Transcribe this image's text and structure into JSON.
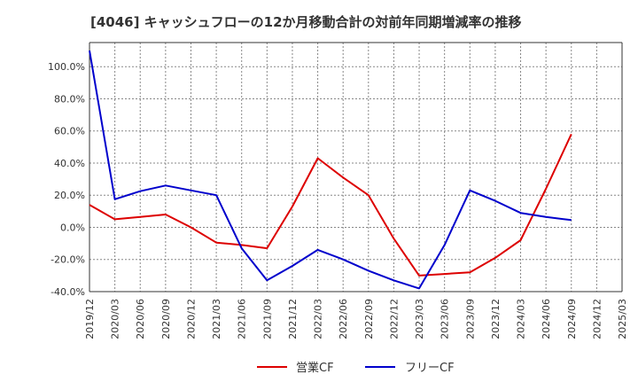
{
  "chart_data": {
    "type": "line",
    "title": "[4046]  キャッシュフローの12か月移動合計の対前年同期増減率の推移",
    "xlabel": "",
    "ylabel": "",
    "ylim": [
      -40,
      115
    ],
    "y_ticks": [
      -40,
      -20,
      0,
      20,
      40,
      60,
      80,
      100
    ],
    "y_tick_labels": [
      "-40.0%",
      "-20.0%",
      "0.0%",
      "20.0%",
      "40.0%",
      "60.0%",
      "80.0%",
      "100.0%"
    ],
    "x_tick_labels": [
      "2019/12",
      "2020/03",
      "2020/06",
      "2020/09",
      "2020/12",
      "2021/03",
      "2021/06",
      "2021/09",
      "2021/12",
      "2022/03",
      "2022/06",
      "2022/09",
      "2022/12",
      "2023/03",
      "2023/06",
      "2023/09",
      "2023/12",
      "2024/03",
      "2024/06",
      "2024/09",
      "2024/12",
      "2025/03"
    ],
    "grid": true,
    "legend_position": "bottom-center",
    "series": [
      {
        "name": "営業CF",
        "color": "#dd0000",
        "values": [
          14,
          5,
          6.5,
          8,
          0,
          -9.5,
          -11,
          -13,
          13,
          43,
          31,
          20,
          -7,
          -30,
          -29,
          -28,
          -19,
          -8,
          24,
          58,
          null,
          null
        ]
      },
      {
        "name": "フリーCF",
        "color": "#0000cc",
        "values": [
          110,
          17.5,
          22.5,
          26,
          23,
          20,
          -13,
          -33,
          -24,
          -14,
          -20,
          -27,
          -33,
          -38,
          -11,
          23,
          16.5,
          9,
          6.5,
          4.5,
          null,
          null
        ]
      }
    ]
  }
}
